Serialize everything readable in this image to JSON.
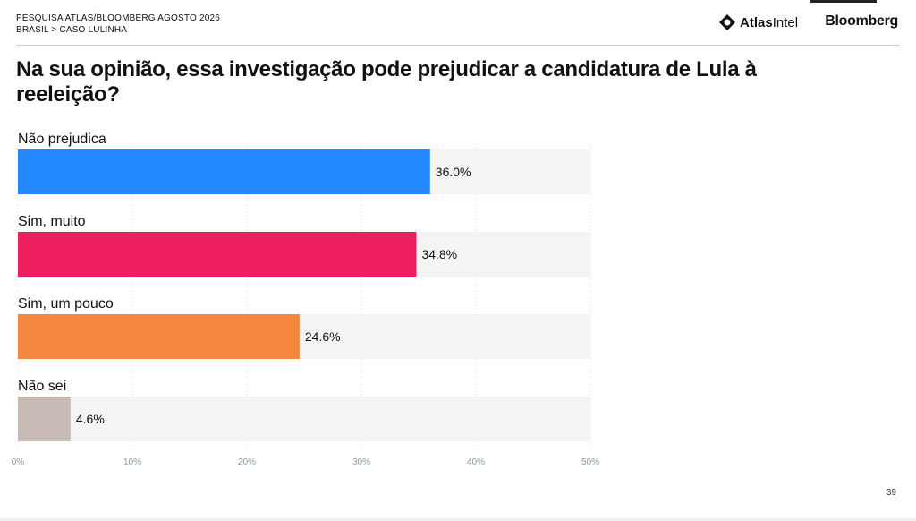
{
  "header": {
    "survey": "PESQUISA ATLAS/BLOOMBERG AGOSTO 2026",
    "breadcrumb": "BRASIL > CASO LULINHA",
    "logo_atlas_part1": "Atlas",
    "logo_atlas_part2": "Intel",
    "logo_bloomberg": "Bloomberg"
  },
  "page_number": "39",
  "chart_data": {
    "type": "bar",
    "orientation": "horizontal",
    "title": "Na sua opinião, essa investigação pode prejudicar a candidatura de Lula à reeleição?",
    "categories": [
      "Não prejudica",
      "Sim, muito",
      "Sim, um pouco",
      "Não sei"
    ],
    "values": [
      36.0,
      34.8,
      24.6,
      4.6
    ],
    "value_labels": [
      "36.0%",
      "34.8%",
      "24.6%",
      "4.6%"
    ],
    "colors": [
      "#2388ff",
      "#ee1f5e",
      "#f5873f",
      "#c8bab4"
    ],
    "track_color": "#f4f4f2",
    "xlim": [
      0,
      50
    ],
    "xticks": [
      0,
      10,
      20,
      30,
      40,
      50
    ],
    "xtick_labels": [
      "0%",
      "10%",
      "20%",
      "30%",
      "40%",
      "50%"
    ],
    "grid": true
  }
}
